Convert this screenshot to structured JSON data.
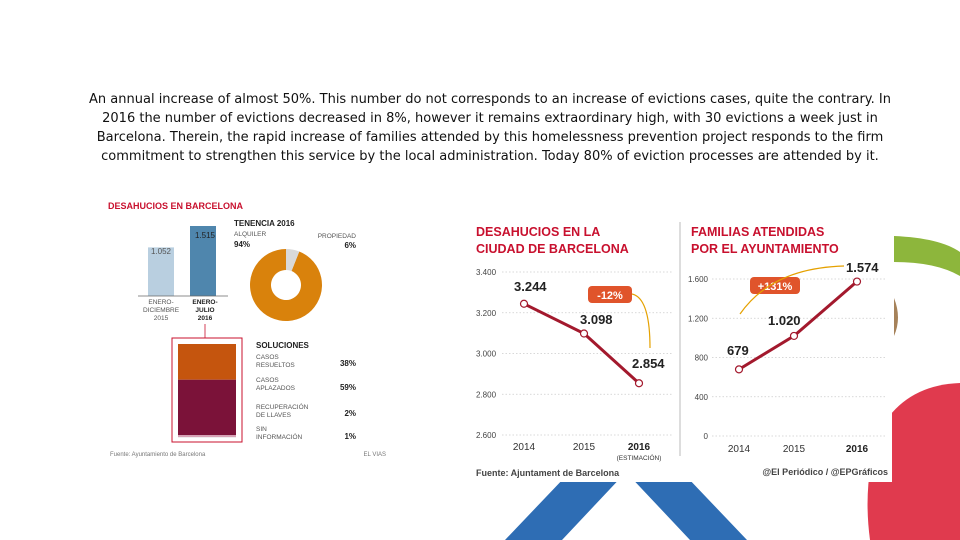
{
  "caption": "An annual increase of almost 50%. This number do not corresponds to an increase of evictions cases, quite the contrary. In 2016 the number of evictions decreased in 8%, however it remains extraordinary high, with 30 evictions a week just in Barcelona. Therein, the rapid increase of families attended by this homelessness prevention project responds to the firm commitment to strengthen this service by the local administration. Today 80% of eviction processes are attended by it.",
  "colors": {
    "bar_2015": "#b9cfe0",
    "bar_2016": "#4f86ad",
    "donut": "#d9820c",
    "resolved": "#c5550e",
    "postponed": "#7b1239",
    "line": "#a3192d",
    "accent_red": "#c8102e"
  },
  "chart_data": [
    {
      "type": "bar",
      "title": "DESAHUCIOS EN BARCELONA",
      "categories": [
        "ENERO-DICIEMBRE 2015",
        "ENERO-JULIO 2016"
      ],
      "values": [
        1052,
        1515
      ],
      "value_labels": [
        "1.052",
        "1.515"
      ],
      "category_labels": [
        [
          "ENERO-",
          "DICIEMBRE",
          "2015"
        ],
        [
          "ENERO-",
          "JULIO",
          "2016"
        ]
      ]
    },
    {
      "type": "pie",
      "title": "TENENCIA 2016",
      "slices": [
        {
          "name": "ALQUILER",
          "value": 94,
          "label": "94%"
        },
        {
          "name": "PROPIEDAD",
          "value": 6,
          "label": "6%"
        }
      ]
    },
    {
      "type": "bar",
      "title": "SOLUCIONES",
      "stacked": true,
      "items": [
        {
          "name": [
            "CASOS",
            "RESUELTOS"
          ],
          "value": 38,
          "label": "38%"
        },
        {
          "name": [
            "CASOS",
            "APLAZADOS"
          ],
          "value": 59,
          "label": "59%"
        },
        {
          "name": [
            "RECUPERACIÓN",
            "DE LLAVES"
          ],
          "value": 2,
          "label": "2%"
        },
        {
          "name": [
            "SIN",
            "INFORMACIÓN"
          ],
          "value": 1,
          "label": "1%"
        }
      ],
      "source": "Fuente: Ayuntamiento de Barcelona",
      "credit": "EL VIAS"
    },
    {
      "type": "line",
      "title": [
        "DESAHUCIOS EN LA",
        "CIUDAD DE BARCELONA"
      ],
      "x": [
        "2014",
        "2015",
        "2016"
      ],
      "x_note": "(ESTIMACIÓN)",
      "values": [
        3244,
        3098,
        2854
      ],
      "value_labels": [
        "3.244",
        "3.098",
        "2.854"
      ],
      "ylim": [
        2600,
        3400
      ],
      "yticks": [
        2600,
        2800,
        3000,
        3200,
        3400
      ],
      "ytick_labels": [
        "2.600",
        "2.800",
        "3.000",
        "3.200",
        "3.400"
      ],
      "annotation": "-12%"
    },
    {
      "type": "line",
      "title": [
        "FAMILIAS ATENDIDAS",
        "POR EL AYUNTAMIENTO"
      ],
      "x": [
        "2014",
        "2015",
        "2016"
      ],
      "values": [
        679,
        1020,
        1574
      ],
      "value_labels": [
        "679",
        "1.020",
        "1.574"
      ],
      "ylim": [
        0,
        1600
      ],
      "yticks": [
        0,
        400,
        800,
        1200,
        1600
      ],
      "ytick_labels": [
        "0",
        "400",
        "800",
        "1.200",
        "1.600"
      ],
      "annotation": "+131%"
    }
  ],
  "footer": {
    "source": "Fuente: Ajuntament de Barcelona",
    "credit": "@El Periódico / @EPGráficos"
  }
}
